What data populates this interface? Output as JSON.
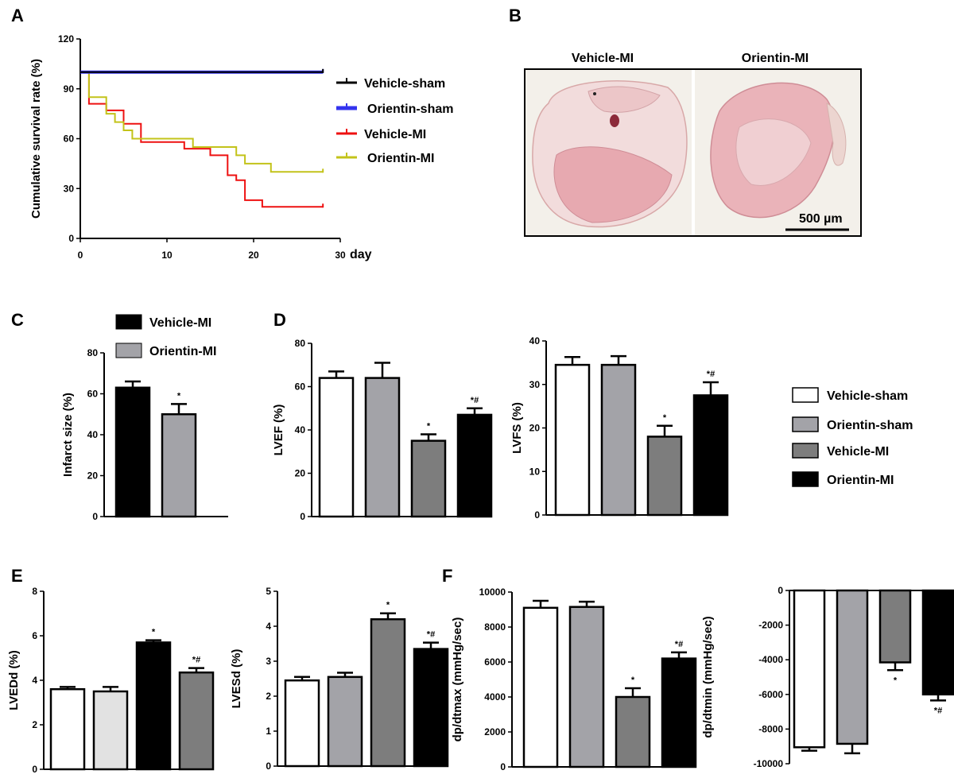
{
  "panels": {
    "A": "A",
    "B": "B",
    "C": "C",
    "D": "D",
    "E": "E",
    "F": "F"
  },
  "image_b": {
    "left_label": "Vehicle-MI",
    "right_label": "Orientin-MI",
    "scale_label": "500 µm"
  },
  "colors": {
    "vehicle_sham_line": "#000000",
    "orientin_sham_line": "#3333ee",
    "vehicle_mi_line": "#ee1111",
    "orientin_mi_line": "#c3c31a",
    "bar_white": "#ffffff",
    "bar_lightgray": "#a3a3a8",
    "bar_palegray": "#e2e2e2",
    "bar_darkgray": "#7d7d7d",
    "bar_black": "#000000"
  },
  "chart_data": [
    {
      "id": "A",
      "type": "line",
      "step": true,
      "xlabel": "day",
      "ylabel": "Cumulative survival rate (%)",
      "xlim": [
        0,
        30
      ],
      "ylim": [
        0,
        120
      ],
      "xticks": [
        "0",
        "10",
        "20",
        "30"
      ],
      "yticks": [
        "0",
        "30",
        "60",
        "90",
        "120"
      ],
      "series": [
        {
          "name": "Vehicle-sham",
          "colorKey": "vehicle_sham_line",
          "width": 2,
          "points": [
            [
              0,
              100
            ],
            [
              28,
              100
            ]
          ]
        },
        {
          "name": "Orientin-sham",
          "colorKey": "orientin_sham_line",
          "width": 4,
          "points": [
            [
              0,
              100
            ],
            [
              28,
              100
            ]
          ]
        },
        {
          "name": "Vehicle-MI",
          "colorKey": "vehicle_mi_line",
          "width": 2,
          "points": [
            [
              0,
              100
            ],
            [
              1,
              100
            ],
            [
              1,
              81
            ],
            [
              3,
              81
            ],
            [
              3,
              77
            ],
            [
              5,
              77
            ],
            [
              5,
              69
            ],
            [
              7,
              69
            ],
            [
              7,
              58
            ],
            [
              12,
              58
            ],
            [
              12,
              54
            ],
            [
              15,
              54
            ],
            [
              15,
              50
            ],
            [
              17,
              50
            ],
            [
              17,
              38
            ],
            [
              18,
              38
            ],
            [
              18,
              35
            ],
            [
              19,
              35
            ],
            [
              19,
              23
            ],
            [
              21,
              23
            ],
            [
              21,
              19
            ],
            [
              28,
              19
            ]
          ]
        },
        {
          "name": "Orientin-MI",
          "colorKey": "orientin_mi_line",
          "width": 2,
          "points": [
            [
              0,
              100
            ],
            [
              1,
              100
            ],
            [
              1,
              85
            ],
            [
              3,
              85
            ],
            [
              3,
              75
            ],
            [
              4,
              75
            ],
            [
              4,
              70
            ],
            [
              5,
              70
            ],
            [
              5,
              65
            ],
            [
              6,
              65
            ],
            [
              6,
              60
            ],
            [
              13,
              60
            ],
            [
              13,
              55
            ],
            [
              18,
              55
            ],
            [
              18,
              50
            ],
            [
              19,
              50
            ],
            [
              19,
              45
            ],
            [
              22,
              45
            ],
            [
              22,
              40
            ],
            [
              28,
              40
            ]
          ]
        }
      ]
    },
    {
      "id": "C",
      "type": "bar",
      "ylabel": "Infarct size (%)",
      "ylim": [
        0,
        80
      ],
      "yticks": [
        "0",
        "20",
        "40",
        "60",
        "80"
      ],
      "categories": [
        "Vehicle-MI",
        "Orientin-MI"
      ],
      "values": [
        63,
        50
      ],
      "errors": [
        3,
        5
      ],
      "colorKeys": [
        "bar_black",
        "bar_lightgray"
      ],
      "annotations": [
        "",
        "*"
      ],
      "legend": [
        "Vehicle-MI",
        "Orientin-MI"
      ]
    },
    {
      "id": "D1",
      "type": "bar",
      "ylabel": "LVEF (%)",
      "ylim": [
        0,
        80
      ],
      "yticks": [
        "0",
        "20",
        "40",
        "60",
        "80"
      ],
      "categories": [
        "Vehicle-sham",
        "Orientin-sham",
        "Vehicle-MI",
        "Orientin-MI"
      ],
      "values": [
        64,
        64,
        35,
        47
      ],
      "errors": [
        3,
        7,
        3,
        3
      ],
      "colorKeys": [
        "bar_white",
        "bar_lightgray",
        "bar_darkgray",
        "bar_black"
      ],
      "annotations": [
        "",
        "",
        "*",
        "*#"
      ]
    },
    {
      "id": "D2",
      "type": "bar",
      "ylabel": "LVFS (%)",
      "ylim": [
        0,
        40
      ],
      "yticks": [
        "0",
        "10",
        "20",
        "30",
        "40"
      ],
      "categories": [
        "Vehicle-sham",
        "Orientin-sham",
        "Vehicle-MI",
        "Orientin-MI"
      ],
      "values": [
        34.5,
        34.5,
        18,
        27.5
      ],
      "errors": [
        1.8,
        2,
        2.5,
        3
      ],
      "colorKeys": [
        "bar_white",
        "bar_lightgray",
        "bar_darkgray",
        "bar_black"
      ],
      "annotations": [
        "",
        "",
        "*",
        "*#"
      ],
      "legend": [
        "Vehicle-sham",
        "Orientin-sham",
        "Vehicle-MI",
        "Orientin-MI"
      ]
    },
    {
      "id": "E1",
      "type": "bar",
      "ylabel": "LVEDd (%)",
      "ylim": [
        0,
        8
      ],
      "yticks": [
        "0",
        "2",
        "4",
        "6",
        "8"
      ],
      "categories": [
        "Vehicle-sham",
        "Orientin-sham",
        "Vehicle-MI",
        "Orientin-MI"
      ],
      "values": [
        3.6,
        3.5,
        5.7,
        4.35
      ],
      "errors": [
        0.1,
        0.2,
        0.1,
        0.2
      ],
      "colorKeys": [
        "bar_white",
        "bar_palegray",
        "bar_black",
        "bar_darkgray"
      ],
      "annotations": [
        "",
        "",
        "*",
        "*#"
      ]
    },
    {
      "id": "E2",
      "type": "bar",
      "ylabel": "LVESd (%)",
      "ylim": [
        0,
        5
      ],
      "yticks": [
        "0",
        "1",
        "2",
        "3",
        "4",
        "5"
      ],
      "categories": [
        "Vehicle-sham",
        "Orientin-sham",
        "Vehicle-MI",
        "Orientin-MI"
      ],
      "values": [
        2.45,
        2.55,
        4.2,
        3.35
      ],
      "errors": [
        0.1,
        0.12,
        0.17,
        0.18
      ],
      "colorKeys": [
        "bar_white",
        "bar_lightgray",
        "bar_darkgray",
        "bar_black"
      ],
      "annotations": [
        "",
        "",
        "*",
        "*#"
      ]
    },
    {
      "id": "F1",
      "type": "bar",
      "ylabel": "dp/dtmax (mmHg/sec)",
      "ylim": [
        0,
        10000
      ],
      "yticks": [
        "0",
        "2000",
        "4000",
        "6000",
        "8000",
        "10000"
      ],
      "categories": [
        "Vehicle-sham",
        "Orientin-sham",
        "Vehicle-MI",
        "Orientin-MI"
      ],
      "values": [
        9100,
        9150,
        4000,
        6200
      ],
      "errors": [
        400,
        300,
        500,
        350
      ],
      "colorKeys": [
        "bar_white",
        "bar_lightgray",
        "bar_darkgray",
        "bar_black"
      ],
      "annotations": [
        "",
        "",
        "*",
        "*#"
      ]
    },
    {
      "id": "F2",
      "type": "bar",
      "ylabel": "dp/dtmin (mmHg/sec)",
      "ylim": [
        -10000,
        0
      ],
      "yticks": [
        "0",
        "-2000",
        "-4000",
        "-6000",
        "-8000",
        "-10000"
      ],
      "categories": [
        "Vehicle-sham",
        "Orientin-sham",
        "Vehicle-MI",
        "Orientin-MI"
      ],
      "values": [
        -9050,
        -8850,
        -4150,
        -6000
      ],
      "errors": [
        200,
        550,
        450,
        350
      ],
      "colorKeys": [
        "bar_white",
        "bar_lightgray",
        "bar_darkgray",
        "bar_black"
      ],
      "annotations": [
        "",
        "",
        "*",
        "*#"
      ]
    }
  ]
}
